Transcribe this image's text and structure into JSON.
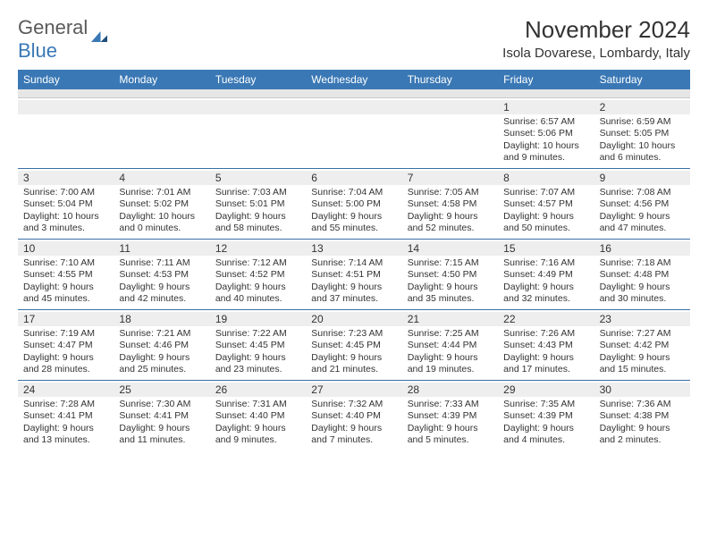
{
  "brand": {
    "text1": "General",
    "text2": "Blue"
  },
  "title": "November 2024",
  "location": "Isola Dovarese, Lombardy, Italy",
  "colors": {
    "header_bg": "#3a78b5",
    "header_text": "#ffffff",
    "subheader_bg": "#e6e6e6",
    "daynum_bg": "#eeeeee",
    "row_border": "#3a6fa5",
    "text": "#333333",
    "logo_gray": "#5a5a5a",
    "logo_blue": "#3a78b5"
  },
  "day_names": [
    "Sunday",
    "Monday",
    "Tuesday",
    "Wednesday",
    "Thursday",
    "Friday",
    "Saturday"
  ],
  "weeks": [
    [
      {
        "n": "",
        "sr": "",
        "ss": "",
        "dl": ""
      },
      {
        "n": "",
        "sr": "",
        "ss": "",
        "dl": ""
      },
      {
        "n": "",
        "sr": "",
        "ss": "",
        "dl": ""
      },
      {
        "n": "",
        "sr": "",
        "ss": "",
        "dl": ""
      },
      {
        "n": "",
        "sr": "",
        "ss": "",
        "dl": ""
      },
      {
        "n": "1",
        "sr": "Sunrise: 6:57 AM",
        "ss": "Sunset: 5:06 PM",
        "dl": "Daylight: 10 hours and 9 minutes."
      },
      {
        "n": "2",
        "sr": "Sunrise: 6:59 AM",
        "ss": "Sunset: 5:05 PM",
        "dl": "Daylight: 10 hours and 6 minutes."
      }
    ],
    [
      {
        "n": "3",
        "sr": "Sunrise: 7:00 AM",
        "ss": "Sunset: 5:04 PM",
        "dl": "Daylight: 10 hours and 3 minutes."
      },
      {
        "n": "4",
        "sr": "Sunrise: 7:01 AM",
        "ss": "Sunset: 5:02 PM",
        "dl": "Daylight: 10 hours and 0 minutes."
      },
      {
        "n": "5",
        "sr": "Sunrise: 7:03 AM",
        "ss": "Sunset: 5:01 PM",
        "dl": "Daylight: 9 hours and 58 minutes."
      },
      {
        "n": "6",
        "sr": "Sunrise: 7:04 AM",
        "ss": "Sunset: 5:00 PM",
        "dl": "Daylight: 9 hours and 55 minutes."
      },
      {
        "n": "7",
        "sr": "Sunrise: 7:05 AM",
        "ss": "Sunset: 4:58 PM",
        "dl": "Daylight: 9 hours and 52 minutes."
      },
      {
        "n": "8",
        "sr": "Sunrise: 7:07 AM",
        "ss": "Sunset: 4:57 PM",
        "dl": "Daylight: 9 hours and 50 minutes."
      },
      {
        "n": "9",
        "sr": "Sunrise: 7:08 AM",
        "ss": "Sunset: 4:56 PM",
        "dl": "Daylight: 9 hours and 47 minutes."
      }
    ],
    [
      {
        "n": "10",
        "sr": "Sunrise: 7:10 AM",
        "ss": "Sunset: 4:55 PM",
        "dl": "Daylight: 9 hours and 45 minutes."
      },
      {
        "n": "11",
        "sr": "Sunrise: 7:11 AM",
        "ss": "Sunset: 4:53 PM",
        "dl": "Daylight: 9 hours and 42 minutes."
      },
      {
        "n": "12",
        "sr": "Sunrise: 7:12 AM",
        "ss": "Sunset: 4:52 PM",
        "dl": "Daylight: 9 hours and 40 minutes."
      },
      {
        "n": "13",
        "sr": "Sunrise: 7:14 AM",
        "ss": "Sunset: 4:51 PM",
        "dl": "Daylight: 9 hours and 37 minutes."
      },
      {
        "n": "14",
        "sr": "Sunrise: 7:15 AM",
        "ss": "Sunset: 4:50 PM",
        "dl": "Daylight: 9 hours and 35 minutes."
      },
      {
        "n": "15",
        "sr": "Sunrise: 7:16 AM",
        "ss": "Sunset: 4:49 PM",
        "dl": "Daylight: 9 hours and 32 minutes."
      },
      {
        "n": "16",
        "sr": "Sunrise: 7:18 AM",
        "ss": "Sunset: 4:48 PM",
        "dl": "Daylight: 9 hours and 30 minutes."
      }
    ],
    [
      {
        "n": "17",
        "sr": "Sunrise: 7:19 AM",
        "ss": "Sunset: 4:47 PM",
        "dl": "Daylight: 9 hours and 28 minutes."
      },
      {
        "n": "18",
        "sr": "Sunrise: 7:21 AM",
        "ss": "Sunset: 4:46 PM",
        "dl": "Daylight: 9 hours and 25 minutes."
      },
      {
        "n": "19",
        "sr": "Sunrise: 7:22 AM",
        "ss": "Sunset: 4:45 PM",
        "dl": "Daylight: 9 hours and 23 minutes."
      },
      {
        "n": "20",
        "sr": "Sunrise: 7:23 AM",
        "ss": "Sunset: 4:45 PM",
        "dl": "Daylight: 9 hours and 21 minutes."
      },
      {
        "n": "21",
        "sr": "Sunrise: 7:25 AM",
        "ss": "Sunset: 4:44 PM",
        "dl": "Daylight: 9 hours and 19 minutes."
      },
      {
        "n": "22",
        "sr": "Sunrise: 7:26 AM",
        "ss": "Sunset: 4:43 PM",
        "dl": "Daylight: 9 hours and 17 minutes."
      },
      {
        "n": "23",
        "sr": "Sunrise: 7:27 AM",
        "ss": "Sunset: 4:42 PM",
        "dl": "Daylight: 9 hours and 15 minutes."
      }
    ],
    [
      {
        "n": "24",
        "sr": "Sunrise: 7:28 AM",
        "ss": "Sunset: 4:41 PM",
        "dl": "Daylight: 9 hours and 13 minutes."
      },
      {
        "n": "25",
        "sr": "Sunrise: 7:30 AM",
        "ss": "Sunset: 4:41 PM",
        "dl": "Daylight: 9 hours and 11 minutes."
      },
      {
        "n": "26",
        "sr": "Sunrise: 7:31 AM",
        "ss": "Sunset: 4:40 PM",
        "dl": "Daylight: 9 hours and 9 minutes."
      },
      {
        "n": "27",
        "sr": "Sunrise: 7:32 AM",
        "ss": "Sunset: 4:40 PM",
        "dl": "Daylight: 9 hours and 7 minutes."
      },
      {
        "n": "28",
        "sr": "Sunrise: 7:33 AM",
        "ss": "Sunset: 4:39 PM",
        "dl": "Daylight: 9 hours and 5 minutes."
      },
      {
        "n": "29",
        "sr": "Sunrise: 7:35 AM",
        "ss": "Sunset: 4:39 PM",
        "dl": "Daylight: 9 hours and 4 minutes."
      },
      {
        "n": "30",
        "sr": "Sunrise: 7:36 AM",
        "ss": "Sunset: 4:38 PM",
        "dl": "Daylight: 9 hours and 2 minutes."
      }
    ]
  ]
}
